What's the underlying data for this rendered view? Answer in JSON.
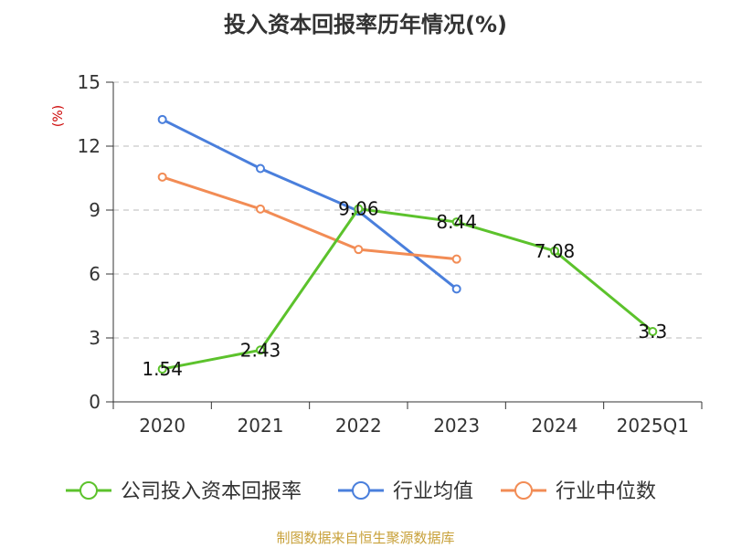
{
  "chart_data": {
    "type": "line",
    "title": "投入资本回报率历年情况(%)",
    "ylabel": "(%)",
    "xlabel": "",
    "categories": [
      "2020",
      "2021",
      "2022",
      "2023",
      "2024",
      "2025Q1"
    ],
    "ylim": [
      0,
      15
    ],
    "yticks": [
      0,
      3,
      6,
      9,
      12,
      15
    ],
    "grid": true,
    "legend_position": "bottom",
    "series": [
      {
        "name": "公司投入资本回报率",
        "color": "#5cc22c",
        "values": [
          1.54,
          2.43,
          9.06,
          8.44,
          7.08,
          3.3
        ],
        "labels": [
          "1.54",
          "2.43",
          "9.06",
          "8.44",
          "7.08",
          "3.3"
        ]
      },
      {
        "name": "行业均值",
        "color": "#4a7fdc",
        "values": [
          13.25,
          10.95,
          8.95,
          5.3,
          null,
          null
        ],
        "labels": null
      },
      {
        "name": "行业中位数",
        "color": "#f28c55",
        "values": [
          10.55,
          9.05,
          7.15,
          6.7,
          null,
          null
        ],
        "labels": null
      }
    ]
  },
  "source": "制图数据来自恒生聚源数据库"
}
